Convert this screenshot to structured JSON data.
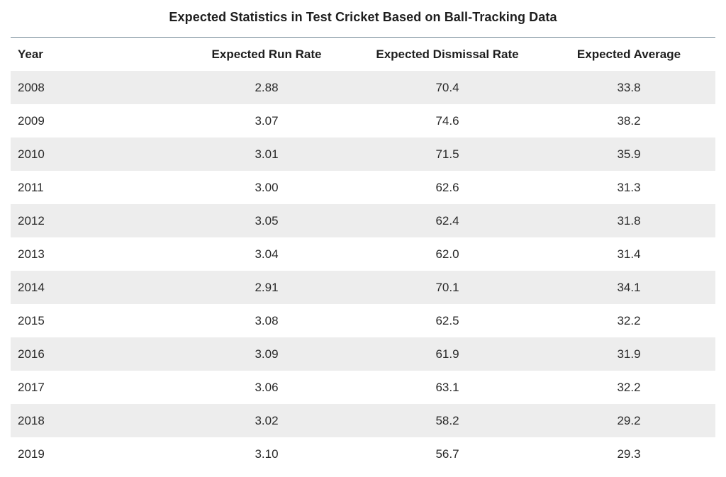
{
  "chart_data": {
    "type": "table",
    "title": "Expected Statistics in Test Cricket Based on Ball-Tracking Data",
    "columns": [
      "Year",
      "Expected Run Rate",
      "Expected Dismissal Rate",
      "Expected Average"
    ],
    "rows": [
      [
        "2008",
        "2.88",
        "70.4",
        "33.8"
      ],
      [
        "2009",
        "3.07",
        "74.6",
        "38.2"
      ],
      [
        "2010",
        "3.01",
        "71.5",
        "35.9"
      ],
      [
        "2011",
        "3.00",
        "62.6",
        "31.3"
      ],
      [
        "2012",
        "3.05",
        "62.4",
        "31.8"
      ],
      [
        "2013",
        "3.04",
        "62.0",
        "31.4"
      ],
      [
        "2014",
        "2.91",
        "70.1",
        "34.1"
      ],
      [
        "2015",
        "3.08",
        "62.5",
        "32.2"
      ],
      [
        "2016",
        "3.09",
        "61.9",
        "31.9"
      ],
      [
        "2017",
        "3.06",
        "63.1",
        "32.2"
      ],
      [
        "2018",
        "3.02",
        "58.2",
        "29.2"
      ],
      [
        "2019",
        "3.10",
        "56.7",
        "29.3"
      ]
    ]
  },
  "colors": {
    "stripe": "#ededed",
    "rule": "#6f8593",
    "text": "#222222"
  }
}
